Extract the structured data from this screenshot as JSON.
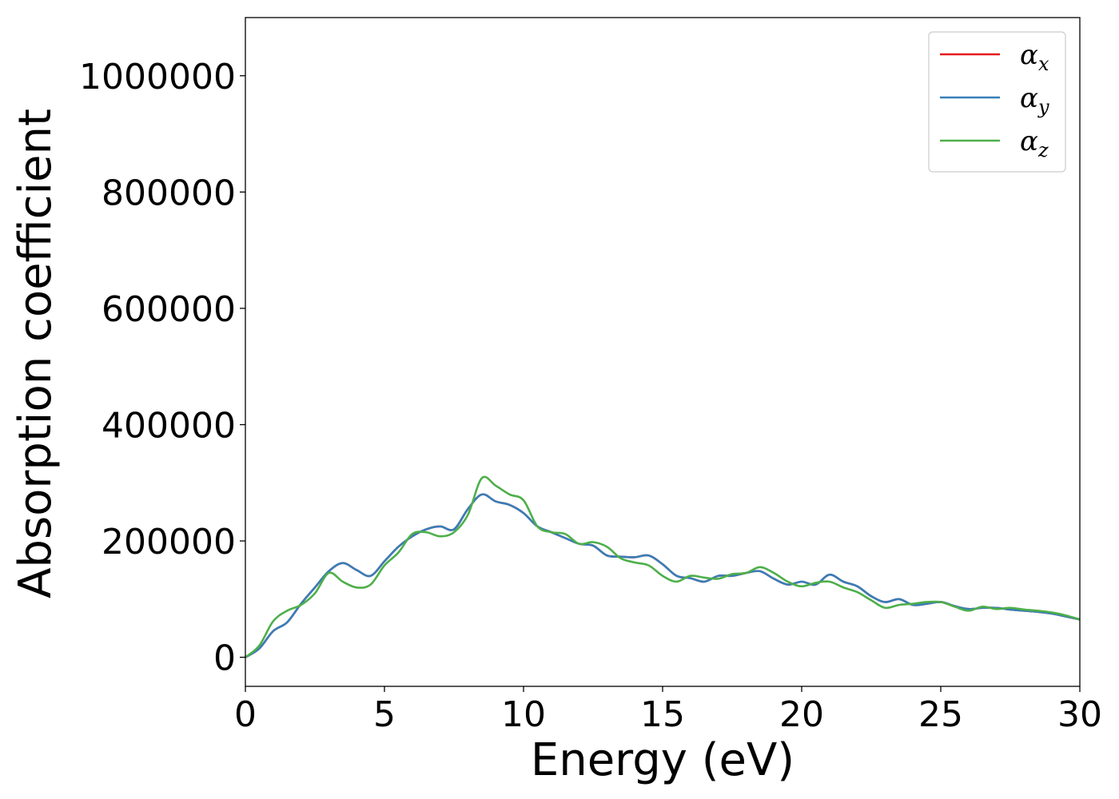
{
  "chart_data": {
    "type": "line",
    "title": "",
    "xlabel": "Energy (eV)",
    "ylabel": "Absorption coefficient",
    "xlim": [
      0,
      30
    ],
    "ylim": [
      -50000,
      1100000
    ],
    "xticks": [
      0,
      5,
      10,
      15,
      20,
      25,
      30
    ],
    "xtick_labels": [
      "0",
      "5",
      "10",
      "15",
      "20",
      "25",
      "30"
    ],
    "yticks": [
      0,
      200000,
      400000,
      600000,
      800000,
      1000000
    ],
    "ytick_labels": [
      "0",
      "200000",
      "400000",
      "600000",
      "800000",
      "1000000"
    ],
    "grid": false,
    "legend_position": "top-right",
    "x": [
      0,
      0.5,
      1,
      1.5,
      2,
      2.5,
      3,
      3.5,
      4,
      4.5,
      5,
      5.5,
      6,
      6.5,
      7,
      7.5,
      8,
      8.5,
      9,
      9.5,
      10,
      10.5,
      11,
      11.5,
      12,
      12.5,
      13,
      13.5,
      14,
      14.5,
      15,
      15.5,
      16,
      16.5,
      17,
      17.5,
      18,
      18.5,
      19,
      19.5,
      20,
      20.5,
      21,
      21.5,
      22,
      22.5,
      23,
      23.5,
      24,
      24.5,
      25,
      25.5,
      26,
      26.5,
      27,
      27.5,
      28,
      28.5,
      29,
      29.5,
      30
    ],
    "series": [
      {
        "name_base": "α",
        "name_sub": "x",
        "color": "#e41a1c",
        "values": [
          0,
          15000,
          45000,
          60000,
          92000,
          120000,
          148000,
          162000,
          150000,
          140000,
          165000,
          190000,
          208000,
          220000,
          225000,
          220000,
          255000,
          280000,
          268000,
          262000,
          248000,
          225000,
          215000,
          205000,
          195000,
          192000,
          175000,
          173000,
          172000,
          175000,
          160000,
          140000,
          136000,
          130000,
          140000,
          140000,
          145000,
          148000,
          135000,
          125000,
          130000,
          125000,
          142000,
          130000,
          122000,
          105000,
          95000,
          100000,
          90000,
          92000,
          95000,
          88000,
          83000,
          85000,
          85000,
          82000,
          80000,
          78000,
          75000,
          70000,
          65000
        ]
      },
      {
        "name_base": "α",
        "name_sub": "y",
        "color": "#377eb8",
        "values": [
          0,
          15000,
          45000,
          60000,
          92000,
          120000,
          148000,
          162000,
          150000,
          140000,
          165000,
          190000,
          208000,
          220000,
          225000,
          220000,
          255000,
          280000,
          268000,
          262000,
          248000,
          225000,
          215000,
          205000,
          195000,
          192000,
          175000,
          173000,
          172000,
          175000,
          160000,
          140000,
          136000,
          130000,
          140000,
          140000,
          145000,
          148000,
          135000,
          125000,
          130000,
          125000,
          142000,
          130000,
          122000,
          105000,
          95000,
          100000,
          90000,
          92000,
          95000,
          88000,
          83000,
          85000,
          85000,
          82000,
          80000,
          78000,
          75000,
          70000,
          65000
        ]
      },
      {
        "name_base": "α",
        "name_sub": "z",
        "color": "#4daf4a",
        "values": [
          0,
          20000,
          62000,
          80000,
          90000,
          110000,
          145000,
          130000,
          120000,
          125000,
          158000,
          180000,
          212000,
          215000,
          208000,
          215000,
          245000,
          308000,
          295000,
          280000,
          270000,
          225000,
          215000,
          212000,
          195000,
          198000,
          190000,
          170000,
          163000,
          158000,
          140000,
          130000,
          140000,
          137000,
          135000,
          143000,
          145000,
          155000,
          145000,
          130000,
          122000,
          128000,
          130000,
          120000,
          112000,
          98000,
          85000,
          90000,
          92000,
          95000,
          95000,
          87000,
          80000,
          87000,
          83000,
          85000,
          82000,
          80000,
          77000,
          72000,
          65000
        ]
      }
    ]
  }
}
